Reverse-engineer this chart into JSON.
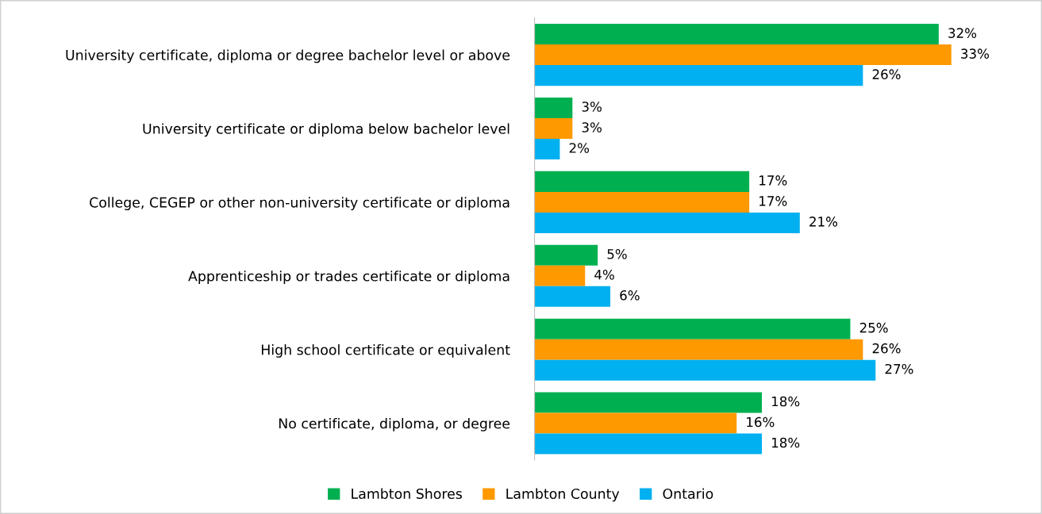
{
  "chart_data": {
    "type": "bar",
    "orientation": "horizontal",
    "legend": "bottom",
    "grid": false,
    "categories": [
      "University certificate, diploma or degree bachelor level or above",
      "University certificate or diploma below bachelor level",
      "College, CEGEP or other non-university certificate or diploma",
      "Apprenticeship or trades certificate or diploma",
      "High school certificate or equivalent",
      "No certificate, diploma, or degree"
    ],
    "series": [
      {
        "name": "Lambton Shores",
        "color": "#00b050",
        "values": [
          32,
          3,
          17,
          5,
          25,
          18
        ],
        "value_labels": [
          "32%",
          "3%",
          "17%",
          "5%",
          "25%",
          "18%"
        ]
      },
      {
        "name": "Lambton County",
        "color": "#ff9900",
        "values": [
          33,
          3,
          17,
          4,
          26,
          16
        ],
        "value_labels": [
          "33%",
          "3%",
          "17%",
          "4%",
          "26%",
          "16%"
        ]
      },
      {
        "name": "Ontario",
        "color": "#00b0f0",
        "values": [
          26,
          2,
          21,
          6,
          27,
          18
        ],
        "value_labels": [
          "26%",
          "2%",
          "21%",
          "6%",
          "27%",
          "18%"
        ]
      }
    ]
  }
}
